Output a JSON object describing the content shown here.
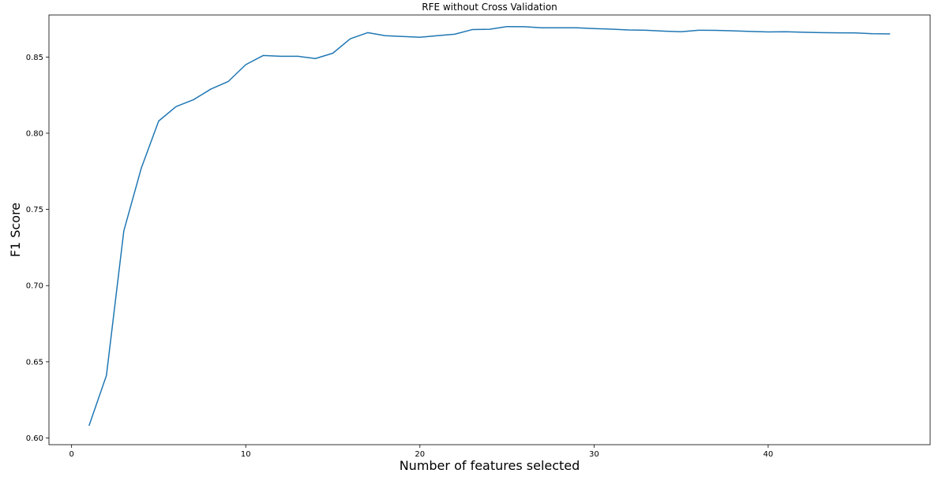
{
  "chart_data": {
    "type": "line",
    "title": "RFE without Cross Validation",
    "xlabel": "Number of features selected",
    "ylabel": "F1 Score",
    "xlim": [
      -1.3,
      49.3
    ],
    "ylim": [
      0.5956,
      0.8776
    ],
    "x_ticks": [
      0,
      10,
      20,
      30,
      40
    ],
    "y_ticks": [
      0.6,
      0.65,
      0.7,
      0.75,
      0.8,
      0.85
    ],
    "x_tick_labels": [
      "0",
      "10",
      "20",
      "30",
      "40"
    ],
    "y_tick_labels": [
      "0.60",
      "0.65",
      "0.70",
      "0.75",
      "0.80",
      "0.85"
    ],
    "grid": false,
    "line_color": "#1f77b4",
    "series": [
      {
        "x": [
          1,
          2,
          3,
          4,
          5,
          6,
          7,
          8,
          9,
          10,
          11,
          12,
          13,
          14,
          15,
          16,
          17,
          18,
          19,
          20,
          21,
          22,
          23,
          24,
          25,
          26,
          27,
          28,
          29,
          30,
          31,
          32,
          33,
          34,
          35,
          36,
          37,
          38,
          39,
          40,
          41,
          42,
          43,
          44,
          45,
          46,
          47
        ],
        "values": [
          0.608,
          0.641,
          0.736,
          0.777,
          0.808,
          0.8175,
          0.822,
          0.829,
          0.834,
          0.845,
          0.851,
          0.8505,
          0.8505,
          0.849,
          0.8525,
          0.862,
          0.866,
          0.864,
          0.8635,
          0.863,
          0.864,
          0.865,
          0.868,
          0.8682,
          0.87,
          0.8699,
          0.8692,
          0.8692,
          0.8692,
          0.8687,
          0.8683,
          0.8678,
          0.8676,
          0.867,
          0.8666,
          0.8676,
          0.8675,
          0.8672,
          0.8668,
          0.8665,
          0.8666,
          0.8663,
          0.866,
          0.8659,
          0.8658,
          0.8653,
          0.8652
        ]
      }
    ]
  }
}
